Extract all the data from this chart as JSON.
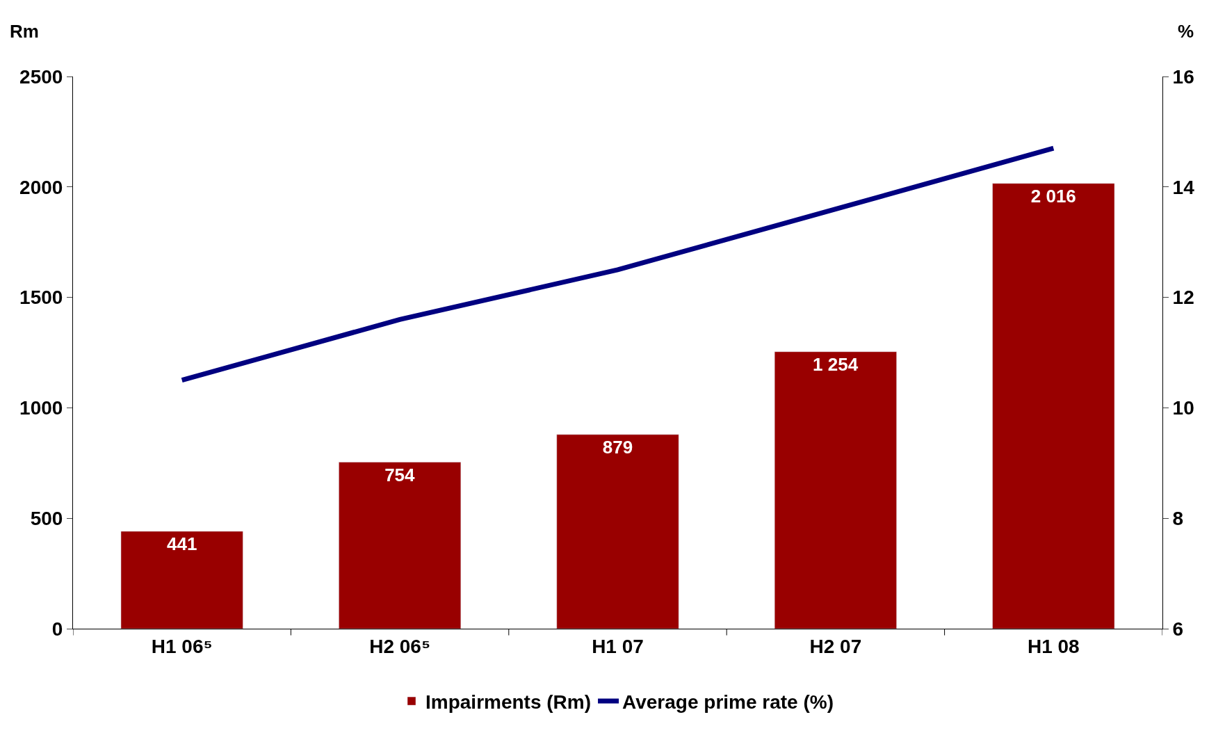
{
  "chart_data": {
    "type": "bar",
    "categories": [
      "H1 06⁵",
      "H2 06⁵",
      "H1 07",
      "H2 07",
      "H1 08"
    ],
    "ylabel": "Rm",
    "y2label": "%",
    "series": [
      {
        "name": "Impairments (Rm)",
        "color": "#990000",
        "values": [
          441,
          754,
          879,
          1254,
          2016
        ],
        "value_labels": [
          "441",
          "754",
          "879",
          "1 254",
          "2 016"
        ]
      },
      {
        "name": "Average prime rate (%)",
        "type": "line",
        "axis": "y2",
        "color": "#000080",
        "values": [
          10.5,
          11.6,
          12.5,
          13.6,
          14.7
        ]
      }
    ],
    "ylim": [
      0,
      2500
    ],
    "yticks": [
      0,
      500,
      1000,
      1500,
      2000,
      2500
    ],
    "y2lim": [
      6,
      16
    ],
    "y2ticks": [
      6,
      8,
      10,
      12,
      14,
      16
    ],
    "legend": "bottom",
    "marker": "none",
    "line_style": "solid"
  }
}
